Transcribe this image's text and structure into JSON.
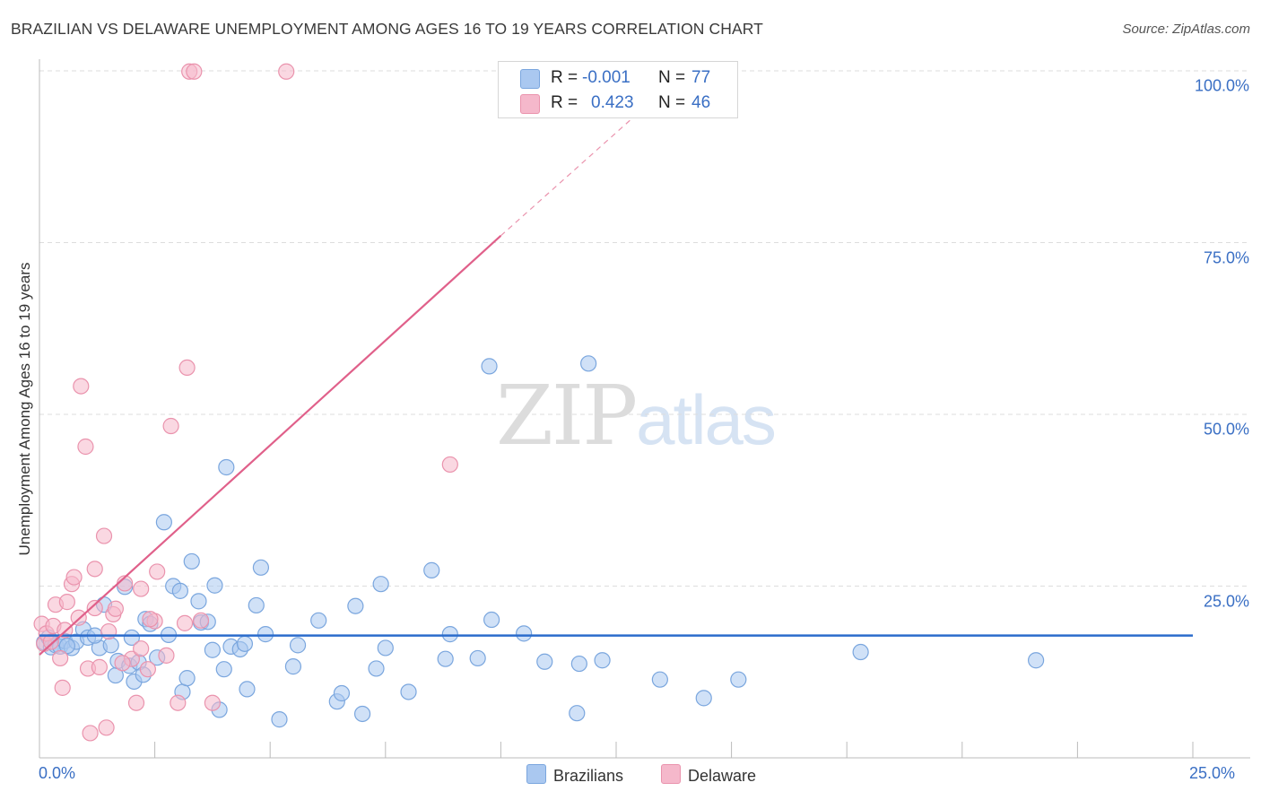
{
  "title": "BRAZILIAN VS DELAWARE UNEMPLOYMENT AMONG AGES 16 TO 19 YEARS CORRELATION CHART",
  "source": "Source: ZipAtlas.com",
  "watermark": {
    "zip": "ZIP",
    "atlas": "atlas"
  },
  "colors": {
    "blue_fill": "#aac8f0",
    "blue_stroke": "#7aa6de",
    "blue_line": "#2b6ccc",
    "pink_fill": "#f5b8cb",
    "pink_stroke": "#ea93ad",
    "pink_line": "#e0608a",
    "tick_text": "#3a6fc4",
    "grid": "#dddddd"
  },
  "stats": {
    "rows": [
      {
        "r_label": "R =",
        "r_value": "-0.001",
        "n_label": "N =",
        "n_value": "77"
      },
      {
        "r_label": "R =",
        "r_value": "0.423",
        "n_label": "N =",
        "n_value": "46"
      }
    ]
  },
  "legend": {
    "items": [
      "Brazilians",
      "Delaware"
    ]
  },
  "chart_data": {
    "type": "scatter",
    "title": "BRAZILIAN VS DELAWARE UNEMPLOYMENT AMONG AGES 16 TO 19 YEARS CORRELATION CHART",
    "xlabel": "",
    "ylabel": "Unemployment Among Ages 16 to 19 years",
    "xlim": [
      0,
      25
    ],
    "ylim": [
      0,
      100
    ],
    "x_tick_labels": [
      "0.0%",
      "25.0%"
    ],
    "y_tick_labels": [
      "100.0%",
      "75.0%",
      "50.0%",
      "25.0%"
    ],
    "y_ticks": [
      100,
      75,
      50,
      25
    ],
    "grid": true,
    "legend_position": "bottom-center",
    "series": [
      {
        "name": "Brazilians",
        "trend": {
          "x": [
            0,
            25
          ],
          "y": [
            17.8,
            17.8
          ]
        },
        "points": [
          [
            0.1,
            16.8
          ],
          [
            0.2,
            17.5
          ],
          [
            0.25,
            16.1
          ],
          [
            0.35,
            16.4
          ],
          [
            0.45,
            16.2
          ],
          [
            0.55,
            17.0
          ],
          [
            0.7,
            16.0
          ],
          [
            0.8,
            16.9
          ],
          [
            0.95,
            18.7
          ],
          [
            1.05,
            17.5
          ],
          [
            1.3,
            16.0
          ],
          [
            1.4,
            22.3
          ],
          [
            1.55,
            16.4
          ],
          [
            1.65,
            12.0
          ],
          [
            1.7,
            14.1
          ],
          [
            1.85,
            24.9
          ],
          [
            1.95,
            13.4
          ],
          [
            2.05,
            11.1
          ],
          [
            2.15,
            13.9
          ],
          [
            2.25,
            12.1
          ],
          [
            2.3,
            20.2
          ],
          [
            2.4,
            19.5
          ],
          [
            2.55,
            14.6
          ],
          [
            2.7,
            34.3
          ],
          [
            2.8,
            17.9
          ],
          [
            2.9,
            25.0
          ],
          [
            3.05,
            24.3
          ],
          [
            3.1,
            9.6
          ],
          [
            3.2,
            11.6
          ],
          [
            3.3,
            28.6
          ],
          [
            3.45,
            22.8
          ],
          [
            3.5,
            19.7
          ],
          [
            3.65,
            19.8
          ],
          [
            3.75,
            15.7
          ],
          [
            3.8,
            25.1
          ],
          [
            3.9,
            7.0
          ],
          [
            4.0,
            12.9
          ],
          [
            4.05,
            42.3
          ],
          [
            4.15,
            16.2
          ],
          [
            4.35,
            15.8
          ],
          [
            4.45,
            16.6
          ],
          [
            4.5,
            10.0
          ],
          [
            4.7,
            22.2
          ],
          [
            4.8,
            27.7
          ],
          [
            5.2,
            5.6
          ],
          [
            5.5,
            13.3
          ],
          [
            5.6,
            16.4
          ],
          [
            6.05,
            20.0
          ],
          [
            6.45,
            8.2
          ],
          [
            6.55,
            9.4
          ],
          [
            6.85,
            22.1
          ],
          [
            7.0,
            6.4
          ],
          [
            7.3,
            13.0
          ],
          [
            7.4,
            25.3
          ],
          [
            7.5,
            16.0
          ],
          [
            8.0,
            9.6
          ],
          [
            8.5,
            27.3
          ],
          [
            8.8,
            14.4
          ],
          [
            8.9,
            18.0
          ],
          [
            9.5,
            14.5
          ],
          [
            9.75,
            57.0
          ],
          [
            9.8,
            20.1
          ],
          [
            10.5,
            18.1
          ],
          [
            10.95,
            14.0
          ],
          [
            11.65,
            6.5
          ],
          [
            11.7,
            13.7
          ],
          [
            11.9,
            57.4
          ],
          [
            12.2,
            14.2
          ],
          [
            13.45,
            11.4
          ],
          [
            14.4,
            8.7
          ],
          [
            15.15,
            11.4
          ],
          [
            17.8,
            15.4
          ],
          [
            21.6,
            14.2
          ],
          [
            2.0,
            17.5
          ],
          [
            1.2,
            17.8
          ],
          [
            0.6,
            16.3
          ],
          [
            4.9,
            18.0
          ]
        ]
      },
      {
        "name": "Delaware",
        "trend": {
          "x": [
            0,
            10
          ],
          "y": [
            15.0,
            76.0
          ],
          "dashed_to": {
            "x": 13.0,
            "y": 94.0
          }
        },
        "points": [
          [
            0.05,
            19.5
          ],
          [
            0.1,
            16.6
          ],
          [
            0.15,
            18.1
          ],
          [
            0.3,
            19.2
          ],
          [
            0.35,
            22.3
          ],
          [
            0.45,
            14.5
          ],
          [
            0.5,
            10.2
          ],
          [
            0.6,
            22.7
          ],
          [
            0.7,
            25.3
          ],
          [
            0.75,
            26.3
          ],
          [
            0.85,
            20.4
          ],
          [
            0.9,
            54.1
          ],
          [
            1.0,
            45.3
          ],
          [
            1.05,
            13.0
          ],
          [
            1.1,
            3.6
          ],
          [
            1.2,
            27.5
          ],
          [
            1.2,
            21.8
          ],
          [
            1.3,
            13.2
          ],
          [
            1.4,
            32.3
          ],
          [
            1.45,
            4.4
          ],
          [
            1.6,
            20.9
          ],
          [
            1.65,
            21.7
          ],
          [
            1.85,
            25.4
          ],
          [
            2.0,
            14.4
          ],
          [
            2.1,
            8.0
          ],
          [
            2.2,
            24.6
          ],
          [
            2.2,
            15.9
          ],
          [
            2.35,
            12.9
          ],
          [
            2.5,
            19.9
          ],
          [
            2.55,
            27.1
          ],
          [
            2.75,
            14.9
          ],
          [
            2.85,
            48.3
          ],
          [
            3.0,
            8.0
          ],
          [
            3.15,
            19.6
          ],
          [
            3.2,
            56.8
          ],
          [
            3.25,
            99.9
          ],
          [
            3.35,
            99.9
          ],
          [
            3.5,
            20.0
          ],
          [
            3.75,
            8.0
          ],
          [
            5.35,
            99.9
          ],
          [
            8.9,
            42.7
          ],
          [
            1.8,
            13.8
          ],
          [
            0.55,
            18.6
          ],
          [
            2.4,
            20.2
          ],
          [
            0.25,
            16.9
          ],
          [
            1.5,
            18.4
          ]
        ]
      }
    ]
  }
}
